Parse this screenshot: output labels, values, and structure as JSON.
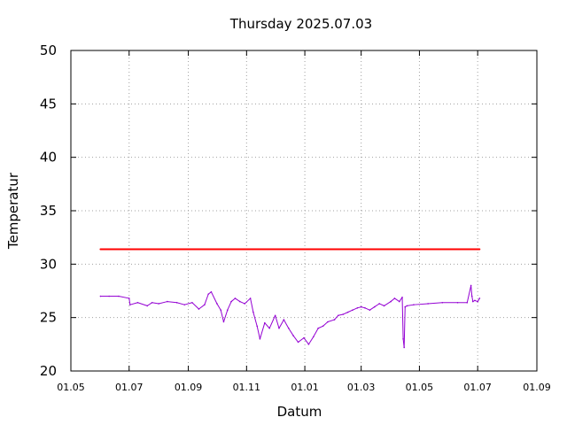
{
  "chart_data": {
    "type": "line",
    "title": "Thursday 2025.07.03",
    "xlabel": "Datum",
    "ylabel": "Temperatur",
    "ylim": [
      20,
      50
    ],
    "yticks": [
      20,
      25,
      30,
      35,
      40,
      45,
      50
    ],
    "xlim": [
      "2024-05-01",
      "2025-09-01"
    ],
    "xticks": [
      {
        "label": "01.05",
        "date": "2024-05-01"
      },
      {
        "label": "01.07",
        "date": "2024-07-01"
      },
      {
        "label": "01.09",
        "date": "2024-09-01"
      },
      {
        "label": "01.11",
        "date": "2024-11-01"
      },
      {
        "label": "01.01",
        "date": "2025-01-01"
      },
      {
        "label": "01.03",
        "date": "2025-03-01"
      },
      {
        "label": "01.05",
        "date": "2025-05-01"
      },
      {
        "label": "01.07",
        "date": "2025-07-01"
      },
      {
        "label": "01.09",
        "date": "2025-09-01"
      }
    ],
    "grid": true,
    "series": [
      {
        "color": "#ff0000",
        "x": [
          "2024-06-01",
          "2025-07-03"
        ],
        "y": [
          31.4,
          31.4
        ]
      },
      {
        "color": "#9400d3",
        "x": [
          "2024-06-01",
          "2024-06-10",
          "2024-06-20",
          "2024-07-01",
          "2024-07-02",
          "2024-07-10",
          "2024-07-20",
          "2024-07-25",
          "2024-08-01",
          "2024-08-10",
          "2024-08-20",
          "2024-08-28",
          "2024-09-05",
          "2024-09-12",
          "2024-09-18",
          "2024-09-22",
          "2024-09-25",
          "2024-10-01",
          "2024-10-05",
          "2024-10-08",
          "2024-10-12",
          "2024-10-16",
          "2024-10-20",
          "2024-10-25",
          "2024-10-30",
          "2024-11-05",
          "2024-11-08",
          "2024-11-12",
          "2024-11-15",
          "2024-11-20",
          "2024-11-25",
          "2024-12-01",
          "2024-12-05",
          "2024-12-10",
          "2024-12-15",
          "2024-12-20",
          "2024-12-25",
          "2024-12-31",
          "2025-01-05",
          "2025-01-10",
          "2025-01-15",
          "2025-01-20",
          "2025-01-25",
          "2025-02-01",
          "2025-02-05",
          "2025-02-10",
          "2025-02-15",
          "2025-02-20",
          "2025-02-25",
          "2025-03-01",
          "2025-03-05",
          "2025-03-10",
          "2025-03-15",
          "2025-03-20",
          "2025-03-25",
          "2025-04-01",
          "2025-04-05",
          "2025-04-10",
          "2025-04-13",
          "2025-04-14",
          "2025-04-15",
          "2025-04-16",
          "2025-04-18",
          "2025-04-25",
          "2025-05-10",
          "2025-05-25",
          "2025-06-10",
          "2025-06-20",
          "2025-06-24",
          "2025-06-25",
          "2025-06-26",
          "2025-06-28",
          "2025-07-01",
          "2025-07-03"
        ],
        "y": [
          27,
          27,
          27,
          26.8,
          26.2,
          26.4,
          26.1,
          26.4,
          26.3,
          26.5,
          26.4,
          26.2,
          26.4,
          25.8,
          26.2,
          27.2,
          27.4,
          26.3,
          25.7,
          24.6,
          25.7,
          26.5,
          26.8,
          26.5,
          26.3,
          26.8,
          25.5,
          24.2,
          23,
          24.5,
          24,
          25.2,
          24,
          24.8,
          24,
          23.3,
          22.7,
          23.1,
          22.5,
          23.2,
          24,
          24.2,
          24.6,
          24.8,
          25.2,
          25.3,
          25.5,
          25.7,
          25.9,
          26,
          25.9,
          25.7,
          26,
          26.3,
          26.1,
          26.5,
          26.8,
          26.5,
          26.9,
          23,
          22.2,
          26,
          26.1,
          26.2,
          26.3,
          26.4,
          26.4,
          26.4,
          28,
          27,
          26.5,
          26.6,
          26.5,
          26.8
        ]
      }
    ]
  }
}
